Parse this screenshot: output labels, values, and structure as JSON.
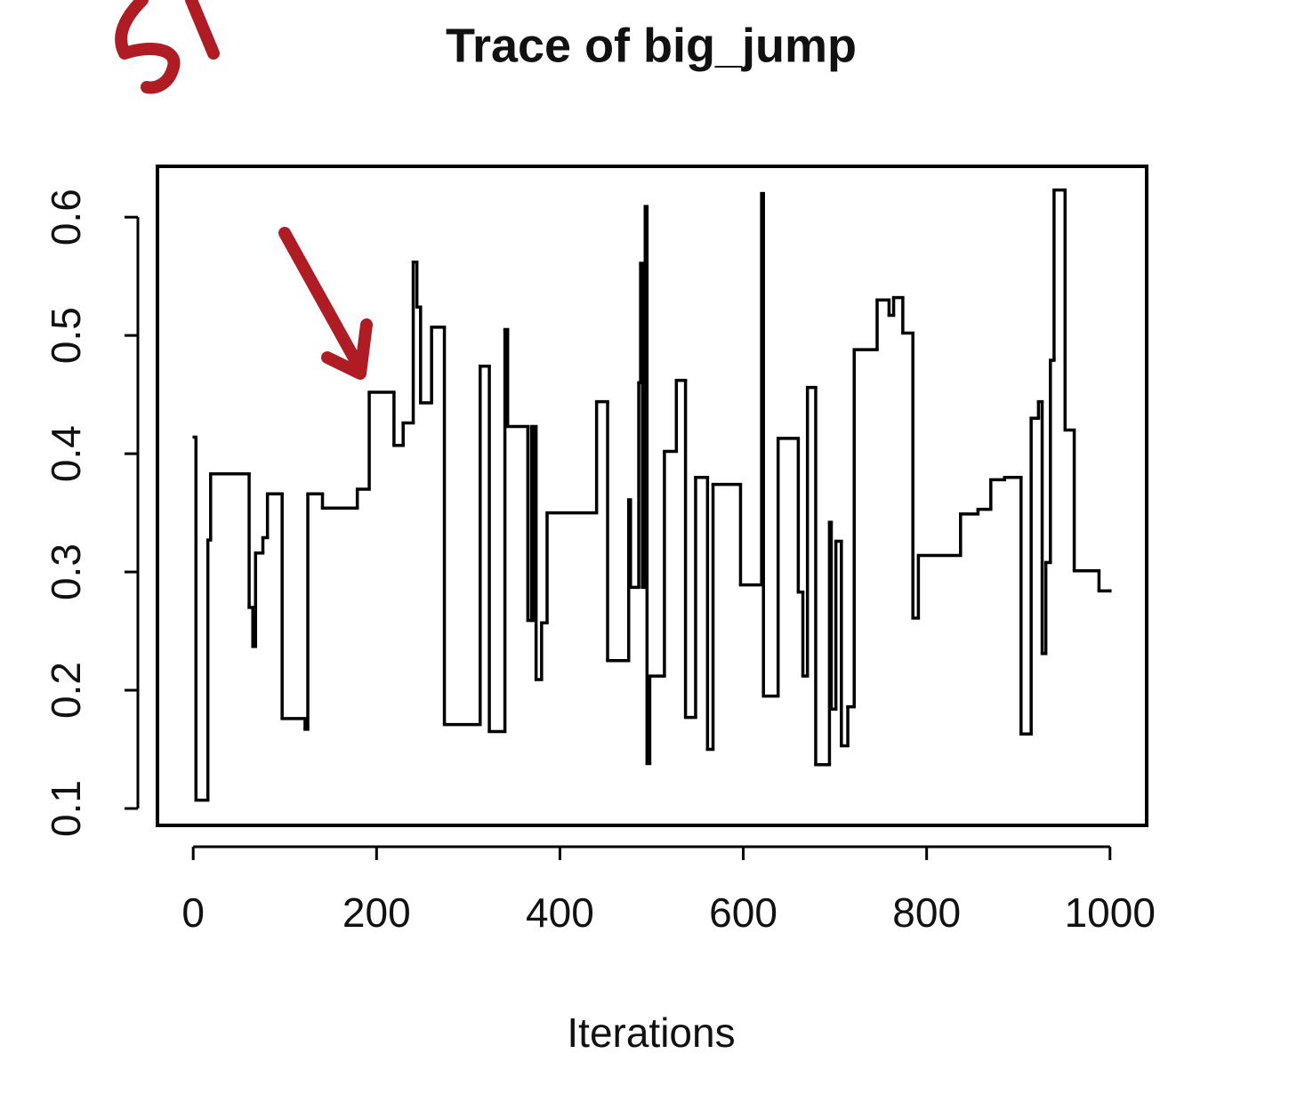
{
  "chart_data": {
    "type": "line",
    "step": "post",
    "title": "Trace of big_jump",
    "xlabel": "Iterations",
    "xlim": [
      -39,
      1040
    ],
    "ylim": [
      0.0857,
      0.643
    ],
    "xticks": [
      0,
      200,
      400,
      600,
      800,
      1000
    ],
    "yticks": [
      0.1,
      0.2,
      0.3,
      0.4,
      0.5,
      0.6
    ],
    "series": [
      {
        "color": "#000000",
        "x": [
          1,
          3,
          16,
          19,
          61,
          65,
          68,
          76,
          81,
          97,
          122,
          125,
          141,
          179,
          192,
          219,
          229,
          240,
          244,
          248,
          260,
          274,
          313,
          323,
          340,
          343,
          365,
          369,
          370,
          372,
          374,
          380,
          386,
          440,
          452,
          475,
          477,
          486,
          488,
          490,
          493,
          495,
          498,
          514,
          527,
          537,
          548,
          561,
          567,
          597,
          620,
          622,
          638,
          660,
          665,
          670,
          679,
          694,
          696,
          701,
          707,
          714,
          721,
          746,
          759,
          764,
          774,
          785,
          791,
          837,
          856,
          870,
          885,
          903,
          914,
          922,
          926,
          930,
          935,
          939,
          951,
          961,
          988,
          1000
        ],
        "values": [
          0.414,
          0.107,
          0.327,
          0.383,
          0.27,
          0.237,
          0.316,
          0.329,
          0.366,
          0.176,
          0.167,
          0.366,
          0.354,
          0.37,
          0.452,
          0.407,
          0.426,
          0.562,
          0.524,
          0.443,
          0.507,
          0.171,
          0.474,
          0.165,
          0.505,
          0.423,
          0.259,
          0.423,
          0.259,
          0.423,
          0.209,
          0.257,
          0.35,
          0.444,
          0.225,
          0.361,
          0.287,
          0.46,
          0.561,
          0.287,
          0.609,
          0.138,
          0.212,
          0.402,
          0.462,
          0.177,
          0.38,
          0.15,
          0.374,
          0.289,
          0.62,
          0.195,
          0.413,
          0.283,
          0.212,
          0.456,
          0.137,
          0.342,
          0.184,
          0.326,
          0.153,
          0.186,
          0.488,
          0.53,
          0.517,
          0.532,
          0.502,
          0.261,
          0.314,
          0.349,
          0.353,
          0.378,
          0.38,
          0.163,
          0.43,
          0.444,
          0.231,
          0.308,
          0.479,
          0.623,
          0.42,
          0.301,
          0.284,
          0.284
        ]
      }
    ]
  }
}
